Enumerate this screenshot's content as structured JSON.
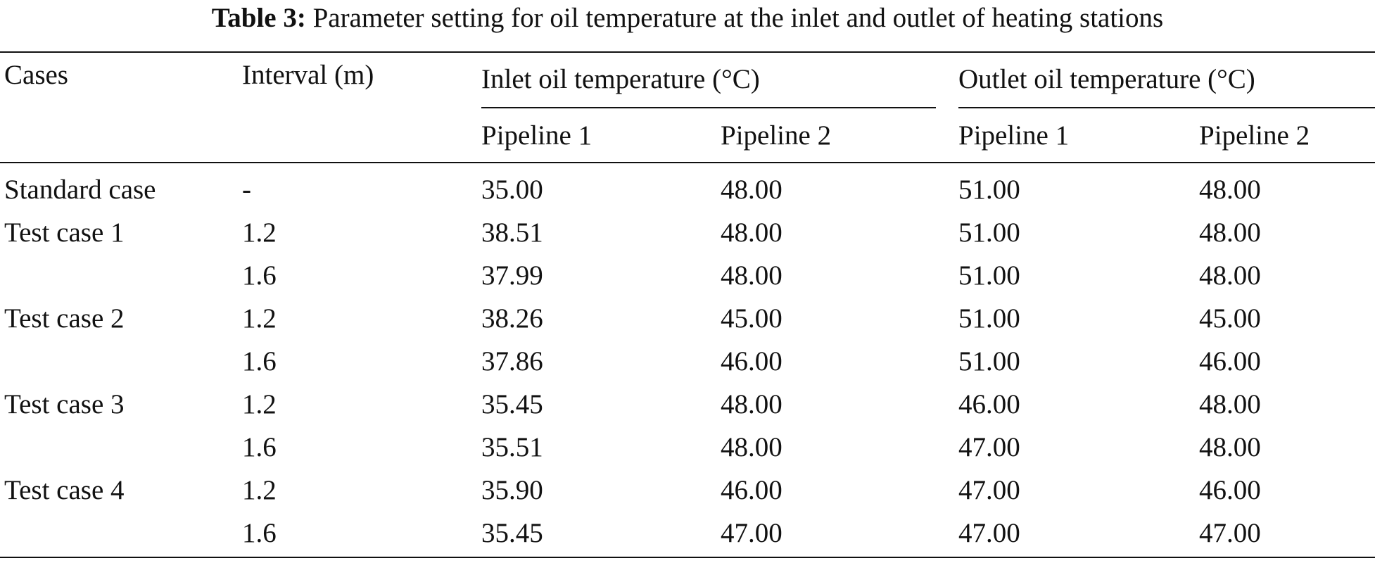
{
  "caption": {
    "label": "Table 3:",
    "text": "Parameter setting for oil temperature at the inlet and outlet of heating stations"
  },
  "header": {
    "cases": "Cases",
    "interval": "Interval (m)",
    "inlet_group": "Inlet oil temperature (°C)",
    "outlet_group": "Outlet oil temperature (°C)",
    "inlet_p1": "Pipeline 1",
    "inlet_p2": "Pipeline 2",
    "outlet_p1": "Pipeline 1",
    "outlet_p2": "Pipeline 2"
  },
  "rows": [
    {
      "case": "Standard case",
      "interval": "-",
      "inlet_p1": "35.00",
      "inlet_p2": "48.00",
      "outlet_p1": "51.00",
      "outlet_p2": "48.00"
    },
    {
      "case": "Test case 1",
      "interval": "1.2",
      "inlet_p1": "38.51",
      "inlet_p2": "48.00",
      "outlet_p1": "51.00",
      "outlet_p2": "48.00"
    },
    {
      "case": "",
      "interval": "1.6",
      "inlet_p1": "37.99",
      "inlet_p2": "48.00",
      "outlet_p1": "51.00",
      "outlet_p2": "48.00"
    },
    {
      "case": "Test case 2",
      "interval": "1.2",
      "inlet_p1": "38.26",
      "inlet_p2": "45.00",
      "outlet_p1": "51.00",
      "outlet_p2": "45.00"
    },
    {
      "case": "",
      "interval": "1.6",
      "inlet_p1": "37.86",
      "inlet_p2": "46.00",
      "outlet_p1": "51.00",
      "outlet_p2": "46.00"
    },
    {
      "case": "Test case 3",
      "interval": "1.2",
      "inlet_p1": "35.45",
      "inlet_p2": "48.00",
      "outlet_p1": "46.00",
      "outlet_p2": "48.00"
    },
    {
      "case": "",
      "interval": "1.6",
      "inlet_p1": "35.51",
      "inlet_p2": "48.00",
      "outlet_p1": "47.00",
      "outlet_p2": "48.00"
    },
    {
      "case": "Test case 4",
      "interval": "1.2",
      "inlet_p1": "35.90",
      "inlet_p2": "46.00",
      "outlet_p1": "47.00",
      "outlet_p2": "46.00"
    },
    {
      "case": "",
      "interval": "1.6",
      "inlet_p1": "35.45",
      "inlet_p2": "47.00",
      "outlet_p1": "47.00",
      "outlet_p2": "47.00"
    }
  ]
}
